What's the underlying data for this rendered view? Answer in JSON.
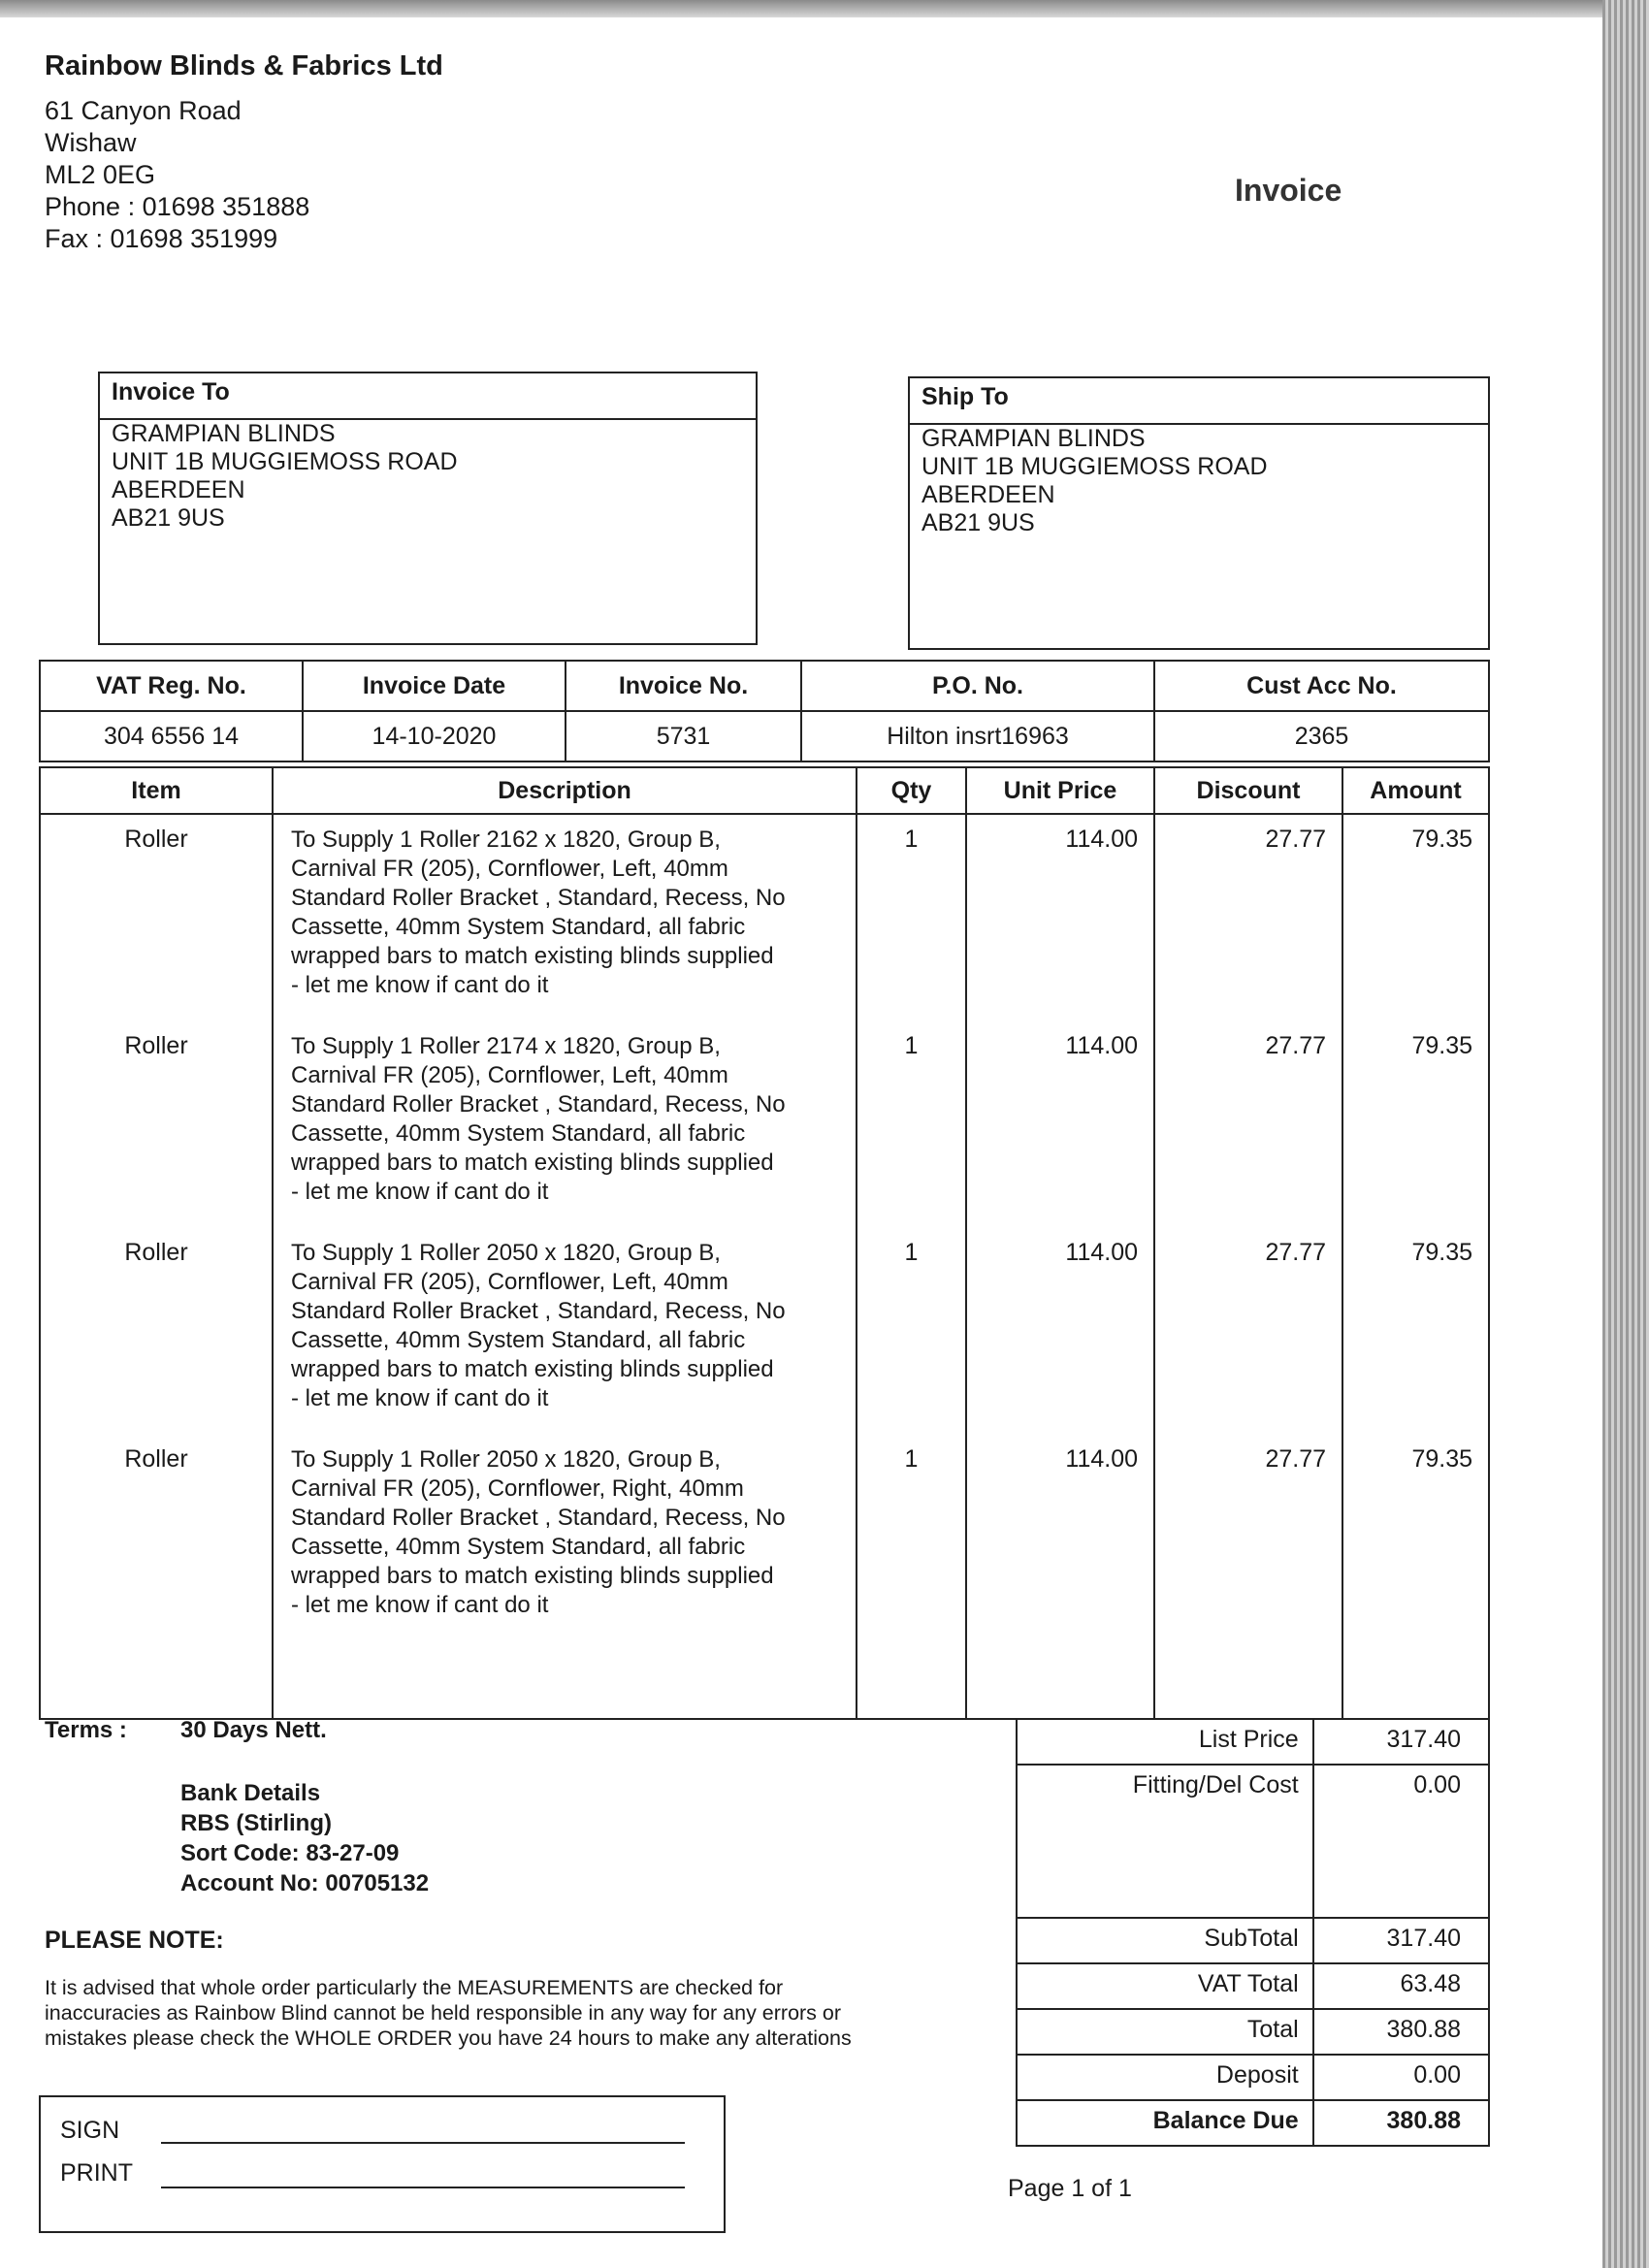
{
  "company": {
    "name": "Rainbow Blinds & Fabrics Ltd",
    "address": [
      "61 Canyon Road",
      "Wishaw",
      "ML2 0EG",
      "Phone : 01698 351888",
      "Fax : 01698 351999"
    ]
  },
  "doc_title": "Invoice",
  "invoice_to": {
    "label": "Invoice To",
    "lines": [
      "GRAMPIAN BLINDS",
      "UNIT 1B MUGGIEMOSS ROAD",
      "ABERDEEN",
      "AB21 9US"
    ]
  },
  "ship_to": {
    "label": "Ship To",
    "lines": [
      "GRAMPIAN BLINDS",
      "UNIT 1B MUGGIEMOSS ROAD",
      "ABERDEEN",
      "AB21 9US"
    ]
  },
  "info": {
    "headers": [
      "VAT Reg. No.",
      "Invoice Date",
      "Invoice No.",
      "P.O. No.",
      "Cust Acc No."
    ],
    "values": [
      "304 6556 14",
      "14-10-2020",
      "5731",
      "Hilton insrt16963",
      "2365"
    ]
  },
  "items": {
    "headers": [
      "Item",
      "Description",
      "Qty",
      "Unit Price",
      "Discount",
      "Amount"
    ],
    "rows": [
      {
        "item": "Roller",
        "desc": [
          "To Supply 1 Roller  2162 x 1820, Group B,",
          "Carnival FR (205), Cornflower, Left, 40mm",
          "Standard Roller Bracket , Standard, Recess, No",
          "Cassette, 40mm System Standard, all fabric",
          "wrapped bars to match existing blinds supplied",
          "- let me know if cant do it"
        ],
        "qty": "1",
        "unit_price": "114.00",
        "discount": "27.77",
        "amount": "79.35"
      },
      {
        "item": "Roller",
        "desc": [
          "To Supply 1 Roller  2174 x 1820, Group B,",
          "Carnival FR (205), Cornflower, Left, 40mm",
          "Standard Roller Bracket , Standard, Recess, No",
          "Cassette, 40mm System Standard, all fabric",
          "wrapped bars to match existing blinds supplied",
          "- let me know if cant do it"
        ],
        "qty": "1",
        "unit_price": "114.00",
        "discount": "27.77",
        "amount": "79.35"
      },
      {
        "item": "Roller",
        "desc": [
          "To Supply 1 Roller  2050 x 1820, Group B,",
          "Carnival FR (205), Cornflower, Left, 40mm",
          "Standard Roller Bracket , Standard, Recess, No",
          "Cassette, 40mm System Standard, all fabric",
          "wrapped bars to match existing blinds supplied",
          "- let me know if cant do it"
        ],
        "qty": "1",
        "unit_price": "114.00",
        "discount": "27.77",
        "amount": "79.35"
      },
      {
        "item": "Roller",
        "desc": [
          "To Supply 1 Roller  2050 x 1820, Group B,",
          "Carnival FR (205), Cornflower, Right, 40mm",
          "Standard Roller Bracket , Standard, Recess, No",
          "Cassette, 40mm System Standard, all fabric",
          "wrapped bars to match existing blinds supplied",
          "- let me know if cant do it"
        ],
        "qty": "1",
        "unit_price": "114.00",
        "discount": "27.77",
        "amount": "79.35"
      }
    ]
  },
  "terms": {
    "label": "Terms :",
    "value": "30 Days Nett."
  },
  "bank": [
    "Bank Details",
    "RBS (Stirling)",
    "Sort Code: 83-27-09",
    "Account No: 00705132"
  ],
  "please_note": {
    "title": "PLEASE NOTE:",
    "lines": [
      "It is advised that whole order particularly the MEASUREMENTS are checked for",
      "inaccuracies as Rainbow Blind cannot be held responsible in any way for any errors or",
      "mistakes please check the WHOLE ORDER you have 24 hours to make any alterations"
    ]
  },
  "sign": {
    "sign_label": "SIGN",
    "print_label": "PRINT"
  },
  "totals": [
    {
      "label": "List Price",
      "value": "317.40"
    },
    {
      "label": "Fitting/Del Cost",
      "value": "0.00"
    },
    {
      "label": "SubTotal",
      "value": "317.40"
    },
    {
      "label": "VAT Total",
      "value": "63.48"
    },
    {
      "label": "Total",
      "value": "380.88"
    },
    {
      "label": "Deposit",
      "value": "0.00"
    },
    {
      "label": "Balance Due",
      "value": "380.88"
    }
  ],
  "page": "Page  1 of  1"
}
